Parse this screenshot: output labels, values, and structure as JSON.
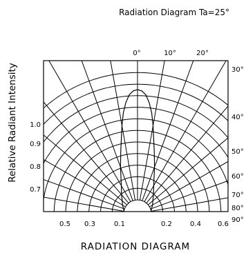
{
  "chart_data": {
    "type": "line",
    "title": "Radiation Diagram  Ta=25°",
    "ylabel": "Relative Radiant Intensity",
    "xlabel": "RADIATION DIAGRAM",
    "angle_ticks_top": [
      "0°",
      "10°",
      "20°"
    ],
    "angle_ticks_right": [
      "30°",
      "40°",
      "50°",
      "60°",
      "70°",
      "80°",
      "90°"
    ],
    "intensity_ticks_left": [
      "1.0",
      "0.9",
      "0.8",
      "0.7"
    ],
    "bottom_ticks_left": [
      "0.5",
      "0.3",
      "0.1"
    ],
    "bottom_ticks_right": [
      "0.2",
      "0.4",
      "0.6"
    ],
    "angle_range_deg": [
      -90,
      90
    ],
    "intensity_range": [
      0,
      1.0
    ],
    "grid": true,
    "series": [
      {
        "angles_deg": [
          -90,
          -80,
          -70,
          -60,
          -50,
          -40,
          -30,
          -20,
          -15,
          -10,
          -8,
          -6,
          -4,
          -2,
          0,
          2,
          4,
          6,
          8,
          10,
          15,
          20,
          30,
          40,
          50,
          60,
          70,
          80,
          90
        ],
        "values": [
          0.1,
          0.11,
          0.12,
          0.14,
          0.16,
          0.2,
          0.26,
          0.4,
          0.52,
          0.72,
          0.82,
          0.9,
          0.96,
          0.99,
          1.0,
          0.99,
          0.96,
          0.9,
          0.82,
          0.72,
          0.52,
          0.4,
          0.26,
          0.2,
          0.16,
          0.14,
          0.12,
          0.11,
          0.1
        ]
      }
    ]
  }
}
